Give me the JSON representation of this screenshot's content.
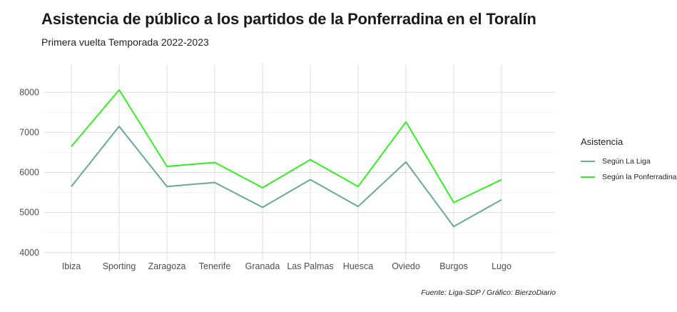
{
  "title": "Asistencia de público a los partidos de la Ponferradina en el Toralín",
  "subtitle": "Primera vuelta Temporada 2022-2023",
  "caption": "Fuente: Liga-SDP / Gráfico: BierzoDiario",
  "legend": {
    "title": "Asistencia"
  },
  "chart_data": {
    "type": "line",
    "categories": [
      "Ibiza",
      "Sporting",
      "Zaragoza",
      "Tenerife",
      "Granada",
      "Las Palmas",
      "Huesca",
      "Oviedo",
      "Burgos",
      "Lugo"
    ],
    "series": [
      {
        "name": "Según La Liga",
        "color": "#66a999",
        "values": [
          5650,
          7150,
          5650,
          5750,
          5130,
          5820,
          5150,
          6260,
          4650,
          5320
        ]
      },
      {
        "name": "Según la Ponferradina",
        "color": "#33ee22",
        "values": [
          6650,
          8060,
          6150,
          6250,
          5620,
          6320,
          5650,
          7260,
          5250,
          5820
        ]
      }
    ],
    "yticks": [
      4000,
      5000,
      6000,
      7000,
      8000
    ],
    "ylim": [
      3800,
      8700
    ],
    "grid": true,
    "legend_position": "right"
  }
}
